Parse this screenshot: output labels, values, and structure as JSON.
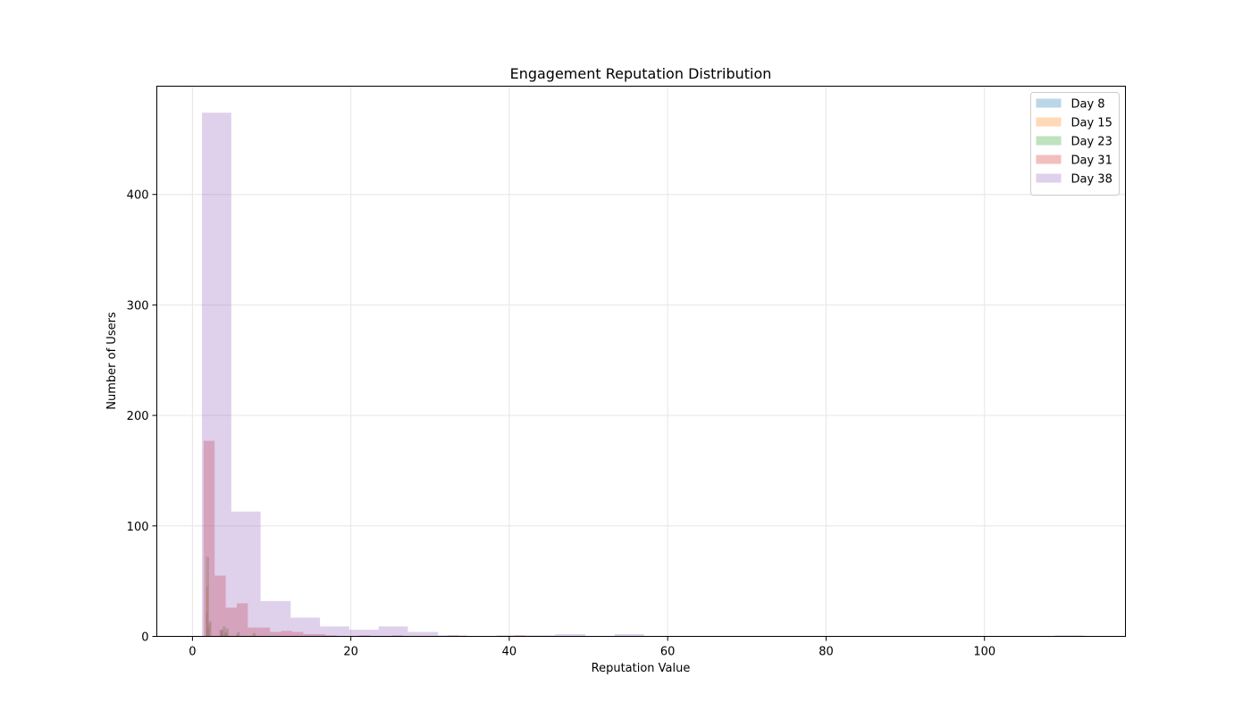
{
  "chart_data": {
    "type": "bar",
    "title": "Engagement Reputation Distribution",
    "xlabel": "Reputation Value",
    "ylabel": "Number of Users",
    "xlim": [
      -4.5,
      117.8
    ],
    "ylim": [
      0,
      498
    ],
    "xticks": [
      0,
      20,
      40,
      60,
      80,
      100
    ],
    "yticks": [
      0,
      100,
      200,
      300,
      400
    ],
    "grid": true,
    "legend_position": "top-right",
    "bar_opacity": 0.3,
    "series": [
      {
        "name": "Day 8",
        "color": "#1f77b4",
        "bins": [
          {
            "x0": 1.7,
            "x1": 1.9,
            "y": 22
          },
          {
            "x0": 1.9,
            "x1": 2.1,
            "y": 8
          },
          {
            "x0": 3.6,
            "x1": 3.9,
            "y": 5
          },
          {
            "x0": 4.1,
            "x1": 4.4,
            "y": 3
          }
        ]
      },
      {
        "name": "Day 15",
        "color": "#ff7f0e",
        "bins": [
          {
            "x0": 1.7,
            "x1": 2.0,
            "y": 45
          },
          {
            "x0": 2.0,
            "x1": 2.3,
            "y": 12
          },
          {
            "x0": 3.5,
            "x1": 3.8,
            "y": 6
          },
          {
            "x0": 4.0,
            "x1": 4.3,
            "y": 4
          },
          {
            "x0": 5.5,
            "x1": 5.8,
            "y": 2
          }
        ]
      },
      {
        "name": "Day 23",
        "color": "#2ca02c",
        "bins": [
          {
            "x0": 1.7,
            "x1": 2.1,
            "y": 72
          },
          {
            "x0": 2.1,
            "x1": 2.4,
            "y": 14
          },
          {
            "x0": 3.4,
            "x1": 3.8,
            "y": 6
          },
          {
            "x0": 3.8,
            "x1": 4.2,
            "y": 9
          },
          {
            "x0": 4.2,
            "x1": 4.6,
            "y": 7
          },
          {
            "x0": 5.6,
            "x1": 6.0,
            "y": 4
          },
          {
            "x0": 7.6,
            "x1": 8.0,
            "y": 3
          }
        ]
      },
      {
        "name": "Day 31",
        "color": "#d62728",
        "bins": [
          {
            "x0": 1.4,
            "x1": 2.8,
            "y": 177
          },
          {
            "x0": 2.8,
            "x1": 4.2,
            "y": 55
          },
          {
            "x0": 4.2,
            "x1": 5.6,
            "y": 26
          },
          {
            "x0": 5.6,
            "x1": 7.0,
            "y": 30
          },
          {
            "x0": 7.0,
            "x1": 8.4,
            "y": 8
          },
          {
            "x0": 8.4,
            "x1": 9.8,
            "y": 8
          },
          {
            "x0": 9.8,
            "x1": 11.2,
            "y": 4
          },
          {
            "x0": 11.2,
            "x1": 12.6,
            "y": 5
          },
          {
            "x0": 12.6,
            "x1": 14.0,
            "y": 4
          },
          {
            "x0": 14.0,
            "x1": 15.4,
            "y": 2
          },
          {
            "x0": 15.4,
            "x1": 16.8,
            "y": 2
          },
          {
            "x0": 16.8,
            "x1": 18.2,
            "y": 1
          },
          {
            "x0": 21.0,
            "x1": 22.4,
            "y": 1
          },
          {
            "x0": 25.2,
            "x1": 26.6,
            "y": 1
          },
          {
            "x0": 32.2,
            "x1": 33.6,
            "y": 1
          },
          {
            "x0": 40.6,
            "x1": 42.0,
            "y": 1
          }
        ]
      },
      {
        "name": "Day 38",
        "color": "#9467bd",
        "bins": [
          {
            "x0": 1.2,
            "x1": 4.9,
            "y": 474
          },
          {
            "x0": 4.9,
            "x1": 8.6,
            "y": 113
          },
          {
            "x0": 8.6,
            "x1": 12.4,
            "y": 32
          },
          {
            "x0": 12.4,
            "x1": 16.1,
            "y": 17
          },
          {
            "x0": 16.1,
            "x1": 19.8,
            "y": 9
          },
          {
            "x0": 19.8,
            "x1": 23.5,
            "y": 6
          },
          {
            "x0": 23.5,
            "x1": 27.2,
            "y": 9
          },
          {
            "x0": 27.2,
            "x1": 31.0,
            "y": 4
          },
          {
            "x0": 31.0,
            "x1": 34.7,
            "y": 1
          },
          {
            "x0": 38.4,
            "x1": 42.1,
            "y": 1
          },
          {
            "x0": 42.1,
            "x1": 45.8,
            "y": 1
          },
          {
            "x0": 45.8,
            "x1": 49.6,
            "y": 2
          },
          {
            "x0": 53.3,
            "x1": 57.0,
            "y": 2
          },
          {
            "x0": 108.9,
            "x1": 112.6,
            "y": 1
          }
        ]
      }
    ]
  }
}
